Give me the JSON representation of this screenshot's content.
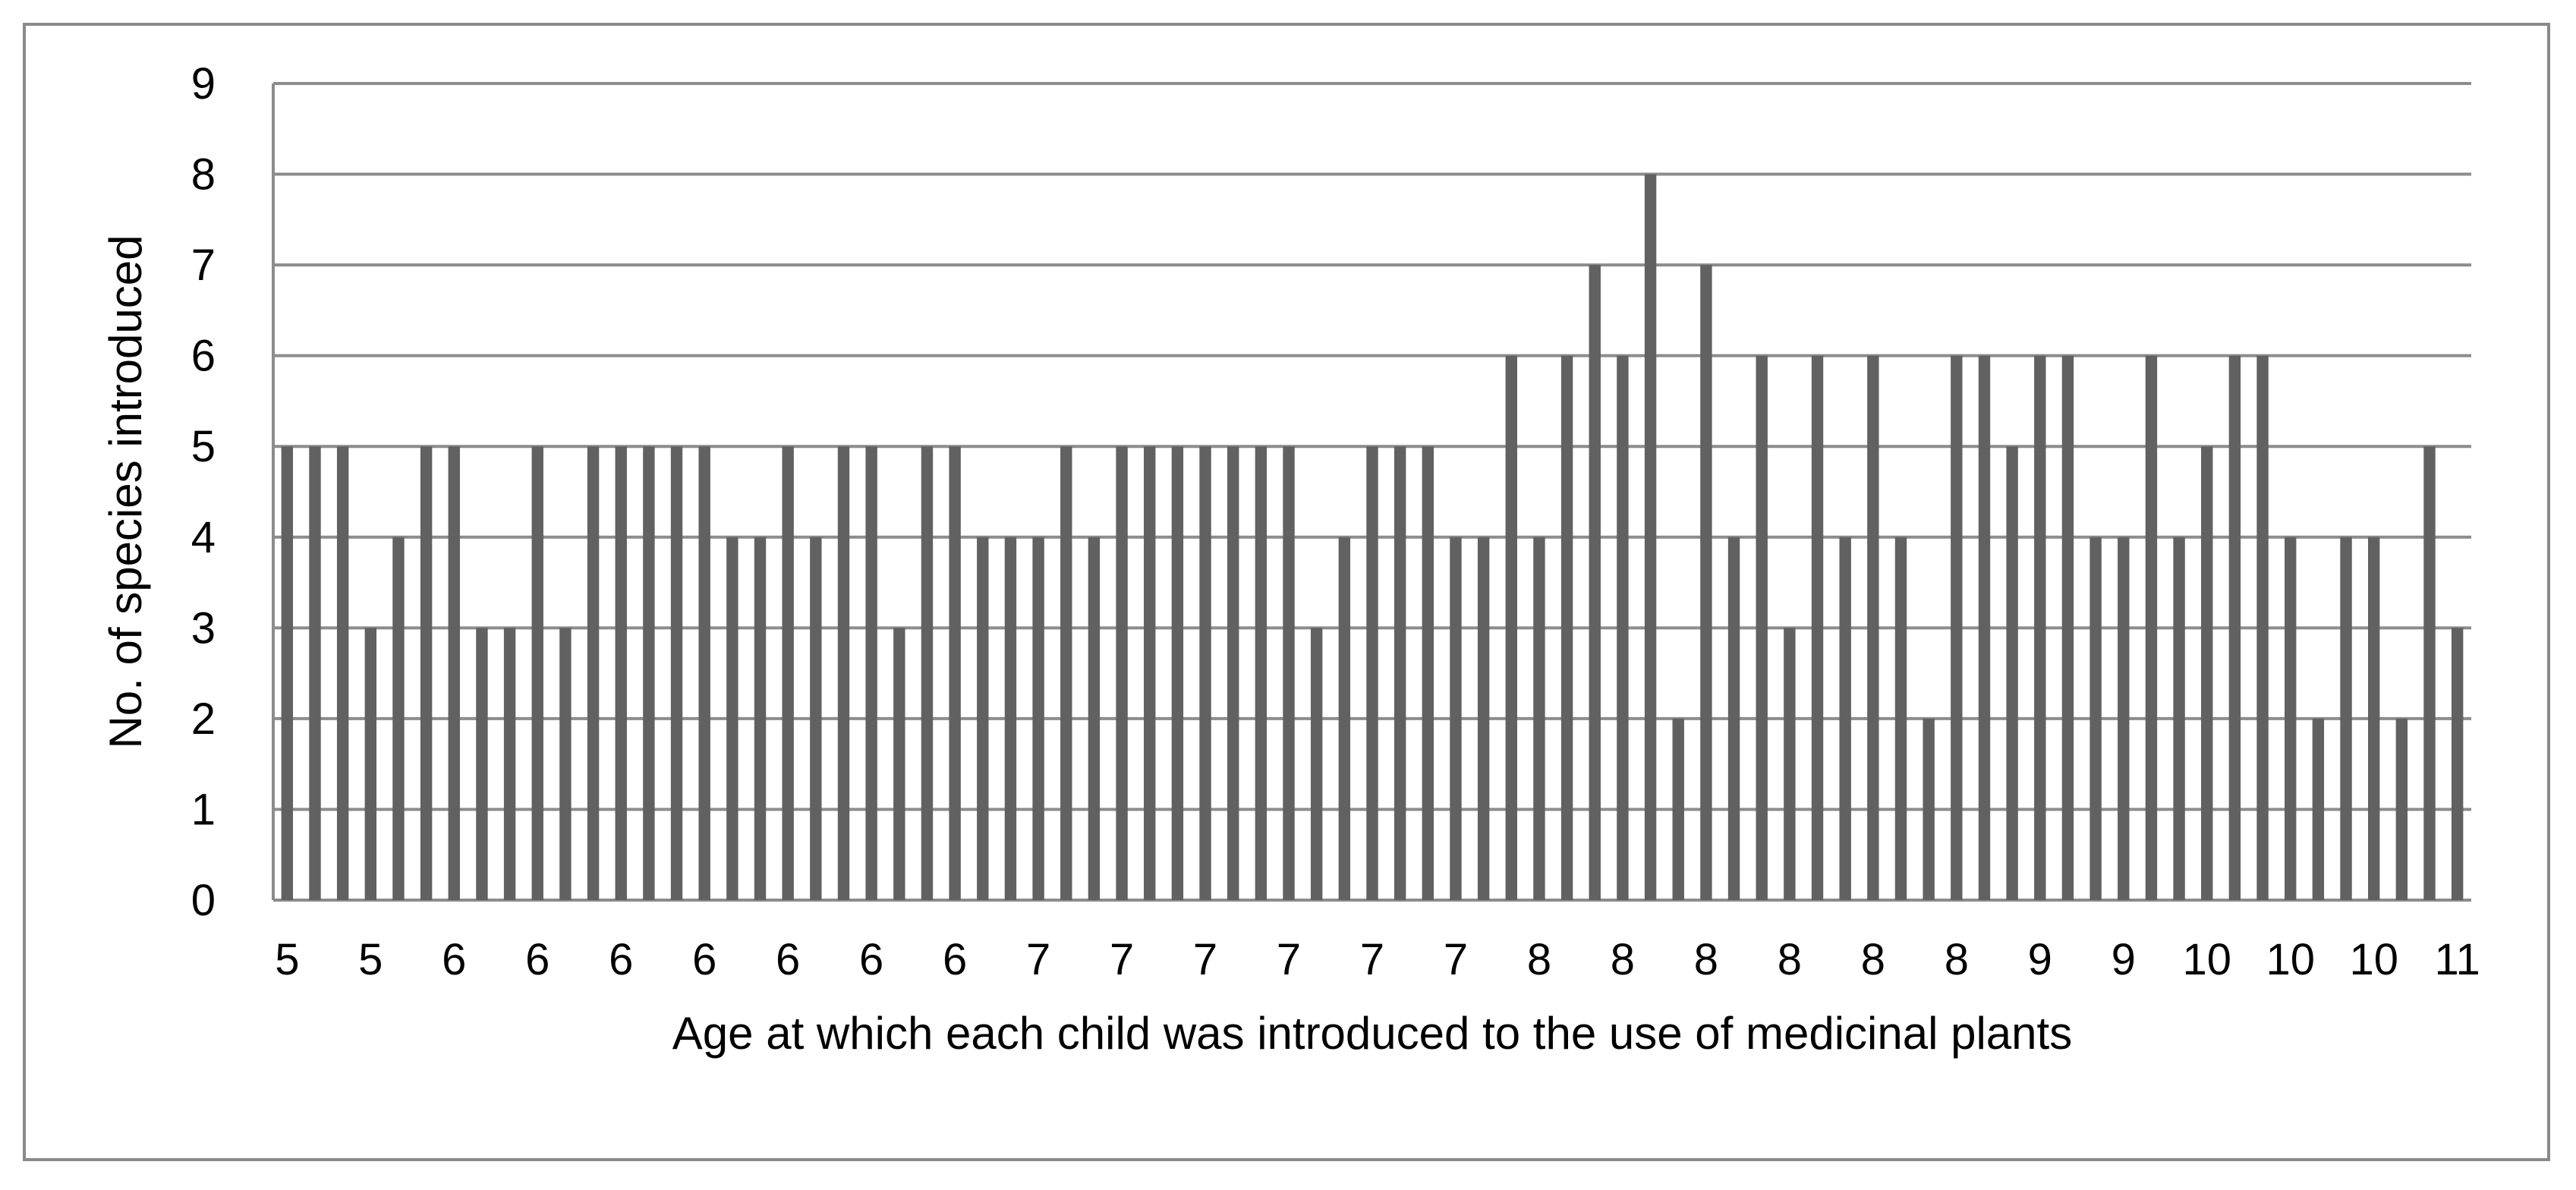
{
  "chart_data": {
    "type": "bar",
    "title": "",
    "xlabel": "Age at which each child was introduced to the use of medicinal plants",
    "ylabel": "No. of species introduced",
    "ylim": [
      0,
      9
    ],
    "yticks": [
      0,
      1,
      2,
      3,
      4,
      5,
      6,
      7,
      8,
      9
    ],
    "grid": true,
    "legend": "none",
    "bar_color": "#616161",
    "grid_color": "#8c8c8c",
    "x_tick_labels": [
      "5",
      "5",
      "6",
      "6",
      "6",
      "6",
      "6",
      "6",
      "6",
      "7",
      "7",
      "7",
      "7",
      "7",
      "7",
      "8",
      "8",
      "8",
      "8",
      "8",
      "8",
      "9",
      "9",
      "10",
      "10",
      "10",
      "11"
    ],
    "values": [
      5,
      5,
      5,
      3,
      4,
      5,
      5,
      3,
      3,
      5,
      3,
      5,
      5,
      5,
      5,
      5,
      4,
      4,
      5,
      4,
      5,
      5,
      3,
      5,
      5,
      4,
      4,
      4,
      5,
      4,
      5,
      5,
      5,
      5,
      5,
      5,
      5,
      3,
      4,
      5,
      5,
      5,
      4,
      4,
      6,
      4,
      6,
      7,
      6,
      8,
      2,
      7,
      4,
      6,
      3,
      6,
      4,
      6,
      4,
      2,
      6,
      6,
      5,
      6,
      6,
      4,
      4,
      6,
      4,
      5,
      6,
      6,
      4,
      2,
      4,
      4,
      2,
      5,
      3
    ]
  }
}
